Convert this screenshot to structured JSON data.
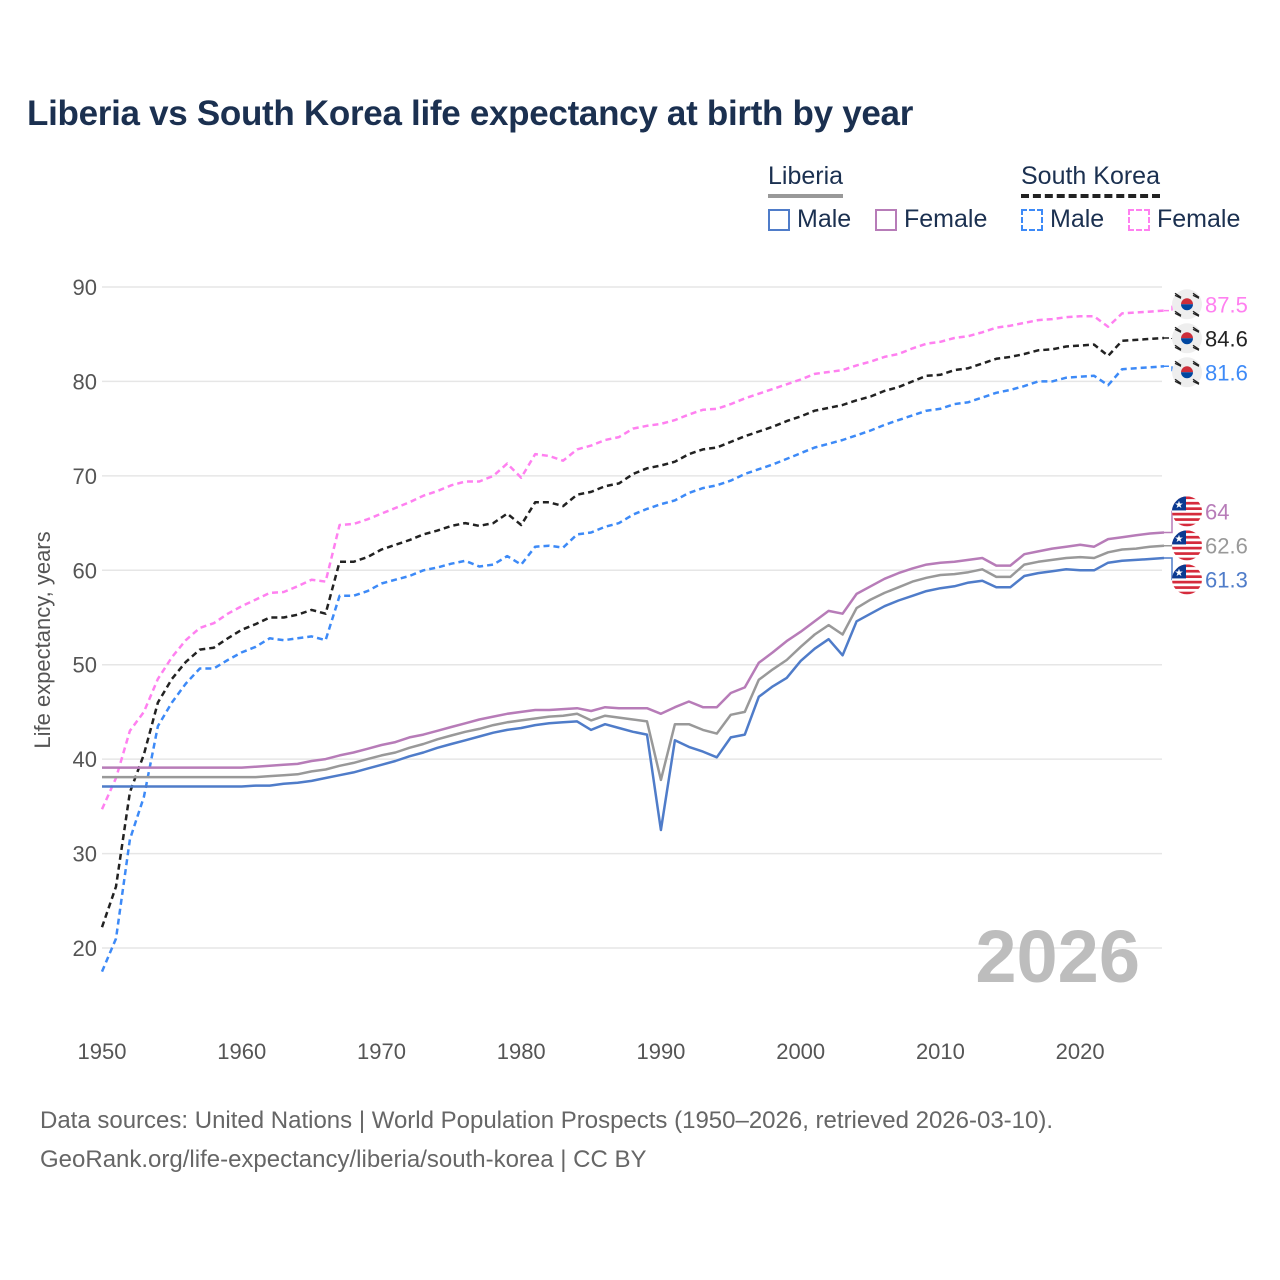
{
  "title": "Liberia vs South Korea life expectancy at birth by year",
  "legend": {
    "groups": [
      {
        "label": "Liberia",
        "line_color": "#999999",
        "line_style": "solid",
        "items": [
          {
            "label": "Male",
            "color": "#4f7cc9"
          },
          {
            "label": "Female",
            "color": "#b77cb8"
          }
        ]
      },
      {
        "label": "South Korea",
        "line_color": "#222222",
        "line_style": "dashed",
        "items": [
          {
            "label": "Male",
            "color": "#3d8af7"
          },
          {
            "label": "Female",
            "color": "#ff80f0"
          }
        ]
      }
    ]
  },
  "year_watermark": "2026",
  "footer": {
    "line1": "Data sources: United Nations | World Population Prospects (1950–2026, retrieved 2026-03-10).",
    "line2": "GeoRank.org/life-expectancy/liberia/south-korea | CC BY"
  },
  "chart_data": {
    "type": "line",
    "title": "Liberia vs South Korea life expectancy at birth by year",
    "xlabel": "",
    "ylabel": "Life expectancy, years",
    "xlim": [
      1950,
      2026
    ],
    "ylim": [
      20,
      90
    ],
    "xticks": [
      1950,
      1960,
      1970,
      1980,
      1990,
      2000,
      2010,
      2020
    ],
    "yticks": [
      20,
      30,
      40,
      50,
      60,
      70,
      80,
      90
    ],
    "grid": true,
    "legend_position": "top-right",
    "x_start": 1950,
    "series": [
      {
        "name": "South Korea Female",
        "country": "South Korea",
        "sex": "Female",
        "color": "#ff80f0",
        "dashed": true,
        "end_label": "87.5",
        "values": [
          34.7,
          38,
          43,
          45,
          48.5,
          50.8,
          52.6,
          53.9,
          54.4,
          55.4,
          56.2,
          56.9,
          57.6,
          57.7,
          58.3,
          59,
          58.8,
          64.8,
          64.9,
          65.4,
          66,
          66.6,
          67.2,
          67.9,
          68.4,
          69,
          69.4,
          69.4,
          70,
          71.3,
          69.8,
          72.3,
          72.1,
          71.6,
          72.8,
          73.2,
          73.8,
          74.1,
          75,
          75.3,
          75.5,
          75.9,
          76.5,
          77,
          77.1,
          77.6,
          78.2,
          78.7,
          79.2,
          79.7,
          80.2,
          80.8,
          81,
          81.2,
          81.7,
          82.1,
          82.6,
          82.9,
          83.5,
          84,
          84.2,
          84.6,
          84.8,
          85.2,
          85.7,
          85.9,
          86.2,
          86.5,
          86.6,
          86.8,
          86.9,
          86.9,
          85.8,
          87.2,
          87.3,
          87.4,
          87.5
        ]
      },
      {
        "name": "South Korea",
        "country": "South Korea",
        "sex": "Total",
        "color": "#222222",
        "dashed": true,
        "end_label": "84.6",
        "values": [
          22.2,
          26.5,
          36.5,
          40.5,
          46,
          48.5,
          50.3,
          51.6,
          51.8,
          52.8,
          53.7,
          54.3,
          55,
          55,
          55.3,
          55.8,
          55.4,
          60.9,
          60.9,
          61.4,
          62.2,
          62.7,
          63.2,
          63.8,
          64.2,
          64.7,
          65,
          64.7,
          65,
          66,
          64.8,
          67.2,
          67.2,
          66.8,
          68,
          68.3,
          68.9,
          69.2,
          70.2,
          70.8,
          71.1,
          71.5,
          72.3,
          72.8,
          73,
          73.6,
          74.2,
          74.7,
          75.2,
          75.8,
          76.3,
          76.9,
          77.2,
          77.5,
          78,
          78.4,
          79,
          79.4,
          80,
          80.6,
          80.7,
          81.2,
          81.4,
          81.9,
          82.4,
          82.6,
          82.9,
          83.3,
          83.4,
          83.7,
          83.8,
          83.9,
          82.7,
          84.3,
          84.4,
          84.5,
          84.6
        ]
      },
      {
        "name": "South Korea Male",
        "country": "South Korea",
        "sex": "Male",
        "color": "#3d8af7",
        "dashed": true,
        "end_label": "81.6",
        "values": [
          17.5,
          21,
          31.5,
          36,
          43.5,
          46,
          48,
          49.6,
          49.6,
          50.5,
          51.3,
          51.9,
          52.8,
          52.6,
          52.8,
          53,
          52.6,
          57.3,
          57.3,
          57.8,
          58.6,
          59,
          59.4,
          60,
          60.3,
          60.7,
          61,
          60.4,
          60.6,
          61.5,
          60.6,
          62.5,
          62.6,
          62.4,
          63.8,
          64,
          64.6,
          65,
          65.9,
          66.5,
          67,
          67.4,
          68.2,
          68.7,
          69,
          69.5,
          70.2,
          70.7,
          71.2,
          71.8,
          72.4,
          73,
          73.4,
          73.8,
          74.3,
          74.8,
          75.4,
          75.9,
          76.4,
          76.9,
          77.1,
          77.6,
          77.8,
          78.3,
          78.8,
          79.1,
          79.5,
          80,
          80,
          80.4,
          80.5,
          80.6,
          79.6,
          81.3,
          81.4,
          81.5,
          81.6
        ]
      },
      {
        "name": "Liberia Female",
        "country": "Liberia",
        "sex": "Female",
        "color": "#b77cb8",
        "dashed": false,
        "end_label": "64",
        "values": [
          39.1,
          39.1,
          39.1,
          39.1,
          39.1,
          39.1,
          39.1,
          39.1,
          39.1,
          39.1,
          39.1,
          39.2,
          39.3,
          39.4,
          39.5,
          39.8,
          40,
          40.4,
          40.7,
          41.1,
          41.5,
          41.8,
          42.3,
          42.6,
          43,
          43.4,
          43.8,
          44.2,
          44.5,
          44.8,
          45,
          45.2,
          45.2,
          45.3,
          45.4,
          45.1,
          45.5,
          45.4,
          45.4,
          45.4,
          44.8,
          45.5,
          46.1,
          45.5,
          45.5,
          47,
          47.6,
          50.2,
          51.3,
          52.5,
          53.5,
          54.6,
          55.7,
          55.4,
          57.5,
          58.3,
          59.1,
          59.7,
          60.2,
          60.6,
          60.8,
          60.9,
          61.1,
          61.3,
          60.5,
          60.5,
          61.7,
          62,
          62.3,
          62.5,
          62.7,
          62.5,
          63.3,
          63.5,
          63.7,
          63.9,
          64
        ]
      },
      {
        "name": "Liberia",
        "country": "Liberia",
        "sex": "Total",
        "color": "#999999",
        "dashed": false,
        "end_label": "62.6",
        "values": [
          38.1,
          38.1,
          38.1,
          38.1,
          38.1,
          38.1,
          38.1,
          38.1,
          38.1,
          38.1,
          38.1,
          38.1,
          38.2,
          38.3,
          38.4,
          38.7,
          38.9,
          39.3,
          39.6,
          40,
          40.4,
          40.7,
          41.2,
          41.6,
          42.1,
          42.5,
          42.9,
          43.2,
          43.6,
          43.9,
          44.1,
          44.3,
          44.5,
          44.6,
          44.8,
          44.1,
          44.6,
          44.4,
          44.2,
          44,
          37.8,
          43.7,
          43.7,
          43.1,
          42.7,
          44.7,
          45,
          48.4,
          49.5,
          50.5,
          51.9,
          53.2,
          54.2,
          53.2,
          56,
          56.9,
          57.6,
          58.2,
          58.8,
          59.2,
          59.5,
          59.6,
          59.8,
          60.1,
          59.3,
          59.3,
          60.6,
          60.9,
          61.1,
          61.3,
          61.4,
          61.3,
          61.9,
          62.2,
          62.3,
          62.5,
          62.6
        ]
      },
      {
        "name": "Liberia Male",
        "country": "Liberia",
        "sex": "Male",
        "color": "#4f7cc9",
        "dashed": false,
        "end_label": "61.3",
        "values": [
          37.1,
          37.1,
          37.1,
          37.1,
          37.1,
          37.1,
          37.1,
          37.1,
          37.1,
          37.1,
          37.1,
          37.2,
          37.2,
          37.4,
          37.5,
          37.7,
          38,
          38.3,
          38.6,
          39,
          39.4,
          39.8,
          40.3,
          40.7,
          41.2,
          41.6,
          42,
          42.4,
          42.8,
          43.1,
          43.3,
          43.6,
          43.8,
          43.9,
          44,
          43.1,
          43.7,
          43.3,
          42.9,
          42.6,
          32.5,
          42,
          41.3,
          40.8,
          40.2,
          42.3,
          42.6,
          46.6,
          47.7,
          48.6,
          50.4,
          51.7,
          52.7,
          51,
          54.6,
          55.4,
          56.2,
          56.8,
          57.3,
          57.8,
          58.1,
          58.3,
          58.7,
          58.9,
          58.2,
          58.2,
          59.4,
          59.7,
          59.9,
          60.1,
          60,
          60,
          60.8,
          61,
          61.1,
          61.2,
          61.3
        ]
      }
    ]
  }
}
